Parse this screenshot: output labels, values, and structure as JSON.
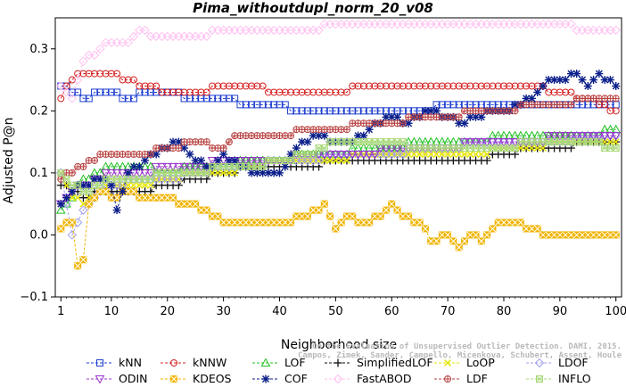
{
  "chart_data": {
    "type": "line",
    "title": "Pima_withoutdupl_norm_20_v08",
    "xlabel": "Neighborhood size",
    "ylabel": "Adjusted P@n",
    "xlim": [
      0,
      101
    ],
    "ylim": [
      -0.1,
      0.35
    ],
    "xticks": [
      1,
      10,
      20,
      30,
      40,
      50,
      60,
      70,
      80,
      90,
      100
    ],
    "yticks": [
      -0.1,
      0.0,
      0.1,
      0.2,
      0.3
    ],
    "ytick_labels": [
      "−0.1",
      "0.0",
      "0.1",
      "0.2",
      "0.3"
    ],
    "legend_position": "bottom",
    "watermark": [
      "Campos, Zimek, Sander, Campello, Micenkova, Schubert, Assent, Houle",
      "On the Evaluation of Unsupervised Outlier Detection. DAMI, 2015."
    ],
    "series": [
      {
        "name": "kNN",
        "color": "#1f3fd0",
        "marker": "square",
        "x": [
          1,
          3,
          5,
          8,
          10,
          13,
          16,
          20,
          25,
          30,
          35,
          40,
          43,
          46,
          50,
          55,
          60,
          65,
          70,
          75,
          80,
          85,
          90,
          95,
          100
        ],
        "values": [
          0.24,
          0.23,
          0.22,
          0.23,
          0.23,
          0.22,
          0.23,
          0.23,
          0.22,
          0.22,
          0.21,
          0.21,
          0.2,
          0.2,
          0.2,
          0.2,
          0.2,
          0.2,
          0.21,
          0.21,
          0.21,
          0.21,
          0.21,
          0.21,
          0.21
        ]
      },
      {
        "name": "kNNW",
        "color": "#d42020",
        "marker": "circle",
        "x": [
          1,
          3,
          5,
          8,
          10,
          13,
          16,
          20,
          25,
          30,
          35,
          40,
          45,
          50,
          55,
          60,
          65,
          70,
          75,
          80,
          85,
          90,
          95,
          100
        ],
        "values": [
          0.22,
          0.25,
          0.26,
          0.26,
          0.26,
          0.25,
          0.24,
          0.23,
          0.23,
          0.24,
          0.24,
          0.23,
          0.23,
          0.23,
          0.24,
          0.24,
          0.24,
          0.24,
          0.24,
          0.24,
          0.24,
          0.23,
          0.22,
          0.2
        ]
      },
      {
        "name": "LOF",
        "color": "#22c022",
        "marker": "triangle-up",
        "x": [
          1,
          3,
          5,
          8,
          10,
          15,
          20,
          25,
          30,
          35,
          40,
          45,
          50,
          55,
          60,
          65,
          70,
          75,
          80,
          85,
          90,
          95,
          100
        ],
        "values": [
          0.04,
          0.06,
          0.09,
          0.1,
          0.11,
          0.11,
          0.1,
          0.11,
          0.11,
          0.12,
          0.12,
          0.13,
          0.13,
          0.14,
          0.14,
          0.15,
          0.15,
          0.15,
          0.16,
          0.16,
          0.16,
          0.16,
          0.17
        ]
      },
      {
        "name": "SimplifiedLOF",
        "color": "#111111",
        "marker": "plus",
        "x": [
          1,
          3,
          5,
          8,
          10,
          15,
          20,
          25,
          30,
          35,
          40,
          45,
          50,
          55,
          60,
          65,
          70,
          75,
          80,
          85,
          90,
          95,
          100
        ],
        "values": [
          0.08,
          0.07,
          0.06,
          0.07,
          0.07,
          0.07,
          0.08,
          0.09,
          0.1,
          0.11,
          0.11,
          0.11,
          0.12,
          0.12,
          0.12,
          0.12,
          0.12,
          0.12,
          0.13,
          0.14,
          0.14,
          0.15,
          0.15
        ]
      },
      {
        "name": "LoOP",
        "color": "#e6e600",
        "marker": "x",
        "x": [
          1,
          3,
          5,
          8,
          10,
          15,
          20,
          25,
          30,
          35,
          40,
          45,
          50,
          55,
          60,
          65,
          70,
          75,
          80,
          85,
          90,
          95,
          100
        ],
        "values": [
          0.1,
          0.06,
          0.05,
          0.07,
          0.08,
          0.08,
          0.09,
          0.1,
          0.1,
          0.11,
          0.12,
          0.12,
          0.12,
          0.13,
          0.13,
          0.13,
          0.13,
          0.13,
          0.14,
          0.14,
          0.15,
          0.15,
          0.15
        ]
      },
      {
        "name": "LDOF",
        "color": "#a0a0f0",
        "marker": "diamond",
        "x": [
          1,
          3,
          5,
          8,
          10,
          15,
          20,
          25,
          30,
          35,
          40,
          45,
          50,
          55,
          60,
          65,
          70,
          75,
          80,
          85,
          90,
          95,
          100
        ],
        "values": [
          0.1,
          0.0,
          0.04,
          0.07,
          0.08,
          0.09,
          0.09,
          0.1,
          0.11,
          0.11,
          0.12,
          0.12,
          0.13,
          0.13,
          0.13,
          0.14,
          0.14,
          0.15,
          0.15,
          0.15,
          0.15,
          0.16,
          0.16
        ]
      },
      {
        "name": "ODIN",
        "color": "#9933cc",
        "marker": "triangle-down",
        "x": [
          1,
          3,
          5,
          8,
          10,
          15,
          20,
          25,
          30,
          35,
          40,
          45,
          50,
          55,
          60,
          65,
          70,
          75,
          80,
          85,
          90,
          95,
          100
        ],
        "values": [
          0.05,
          0.07,
          0.08,
          0.09,
          0.1,
          0.1,
          0.11,
          0.11,
          0.12,
          0.12,
          0.12,
          0.13,
          0.13,
          0.13,
          0.14,
          0.14,
          0.14,
          0.15,
          0.15,
          0.15,
          0.16,
          0.16,
          0.16
        ]
      },
      {
        "name": "KDEOS",
        "color": "#f0b400",
        "marker": "square-x",
        "x": [
          1,
          3,
          4,
          5,
          6,
          8,
          10,
          13,
          16,
          20,
          22,
          25,
          28,
          30,
          35,
          40,
          45,
          48,
          50,
          52,
          55,
          58,
          60,
          62,
          65,
          67,
          70,
          72,
          74,
          76,
          78,
          80,
          82,
          85,
          88,
          90,
          95,
          100
        ],
        "values": [
          0.01,
          0.02,
          -0.05,
          -0.04,
          0.05,
          0.07,
          0.06,
          0.07,
          0.06,
          0.06,
          0.05,
          0.05,
          0.03,
          0.02,
          0.02,
          0.02,
          0.03,
          0.05,
          0.01,
          0.03,
          0.02,
          0.03,
          0.05,
          0.03,
          0.02,
          -0.01,
          0.0,
          -0.02,
          0.0,
          -0.01,
          0.01,
          0.02,
          0.02,
          0.01,
          0.0,
          0.0,
          0.0,
          0.0
        ]
      },
      {
        "name": "COF",
        "color": "#0b1f8a",
        "marker": "star",
        "x": [
          1,
          3,
          5,
          8,
          10,
          11,
          13,
          16,
          20,
          22,
          25,
          28,
          30,
          35,
          40,
          43,
          46,
          50,
          53,
          56,
          60,
          63,
          66,
          70,
          73,
          75,
          78,
          80,
          83,
          86,
          88,
          90,
          93,
          95,
          97,
          100
        ],
        "values": [
          0.05,
          0.07,
          0.08,
          0.09,
          0.08,
          0.04,
          0.1,
          0.12,
          0.14,
          0.15,
          0.12,
          0.11,
          0.13,
          0.1,
          0.1,
          0.14,
          0.16,
          0.15,
          0.15,
          0.17,
          0.19,
          0.18,
          0.2,
          0.19,
          0.18,
          0.19,
          0.2,
          0.2,
          0.21,
          0.23,
          0.25,
          0.25,
          0.26,
          0.24,
          0.26,
          0.24
        ]
      },
      {
        "name": "FastABOD",
        "color": "#ffc0f0",
        "marker": "diamond-open",
        "x": [
          1,
          3,
          5,
          8,
          10,
          13,
          15,
          18,
          20,
          25,
          30,
          35,
          40,
          45,
          50,
          55,
          60,
          70,
          80,
          90,
          95,
          100
        ],
        "values": [
          0.24,
          0.22,
          0.28,
          0.3,
          0.31,
          0.31,
          0.33,
          0.32,
          0.32,
          0.32,
          0.33,
          0.33,
          0.33,
          0.33,
          0.34,
          0.34,
          0.34,
          0.34,
          0.34,
          0.34,
          0.33,
          0.33
        ]
      },
      {
        "name": "LDF",
        "color": "#b84040",
        "marker": "circle-plus",
        "x": [
          1,
          3,
          5,
          8,
          10,
          13,
          15,
          20,
          25,
          30,
          32,
          35,
          40,
          45,
          50,
          55,
          60,
          65,
          70,
          75,
          80,
          85,
          90,
          95,
          100
        ],
        "values": [
          0.09,
          0.1,
          0.11,
          0.13,
          0.13,
          0.13,
          0.13,
          0.14,
          0.15,
          0.14,
          0.16,
          0.16,
          0.16,
          0.17,
          0.17,
          0.18,
          0.18,
          0.19,
          0.19,
          0.2,
          0.2,
          0.21,
          0.21,
          0.22,
          0.22
        ]
      },
      {
        "name": "INFLO",
        "color": "#a8d878",
        "marker": "square-star",
        "x": [
          1,
          3,
          5,
          8,
          10,
          15,
          20,
          25,
          30,
          35,
          40,
          45,
          50,
          55,
          60,
          65,
          70,
          75,
          80,
          85,
          90,
          95,
          100
        ],
        "values": [
          0.1,
          0.08,
          0.07,
          0.08,
          0.09,
          0.09,
          0.1,
          0.1,
          0.11,
          0.11,
          0.12,
          0.13,
          0.15,
          0.15,
          0.15,
          0.14,
          0.14,
          0.14,
          0.14,
          0.15,
          0.15,
          0.15,
          0.14
        ]
      }
    ]
  }
}
